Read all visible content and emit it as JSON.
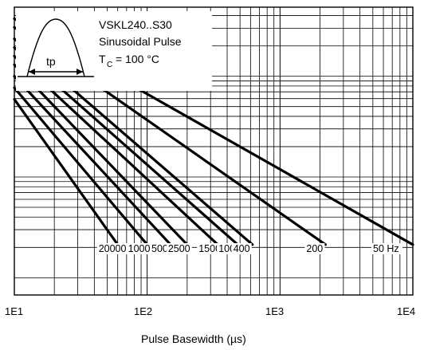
{
  "chart_data": {
    "type": "line",
    "x_scale": "log",
    "xlim": [
      10,
      10000
    ],
    "x_ticks": [
      "1E1",
      "1E2",
      "1E3",
      "1E4"
    ],
    "xlabel": "Pulse Basewidth (µs)",
    "ylabel": "",
    "y_tick_labels": [],
    "grid": true,
    "annotation": {
      "lines": [
        "VSKL240..S30",
        "Sinusoidal Pulse",
        "T",
        "C",
        "= 100 °C"
      ],
      "pulse_label": "tp"
    },
    "series": [
      {
        "name": "20000",
        "x": [
          10,
          60
        ],
        "y": [
          0.68,
          0.175
        ]
      },
      {
        "name": "10000",
        "x": [
          10,
          100
        ],
        "y": [
          0.72,
          0.175
        ]
      },
      {
        "name": "5000",
        "x": [
          10,
          150
        ],
        "y": [
          0.76,
          0.175
        ]
      },
      {
        "name": "2500",
        "x": [
          10,
          200
        ],
        "y": [
          0.8,
          0.175
        ]
      },
      {
        "name": "1500",
        "x": [
          10,
          340
        ],
        "y": [
          0.83,
          0.175
        ]
      },
      {
        "name": "1000",
        "x": [
          10,
          480
        ],
        "y": [
          0.86,
          0.175
        ]
      },
      {
        "name": "400",
        "x": [
          10,
          620
        ],
        "y": [
          0.89,
          0.175
        ]
      },
      {
        "name": "200",
        "x": [
          10,
          2200
        ],
        "y": [
          0.93,
          0.175
        ]
      },
      {
        "name": "50 Hz",
        "x": [
          10,
          10000
        ],
        "y": [
          0.96,
          0.175
        ]
      }
    ]
  }
}
